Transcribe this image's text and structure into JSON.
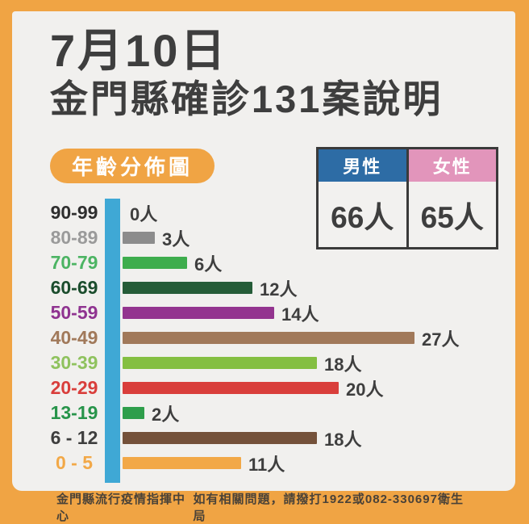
{
  "header": {
    "title_line1": "7月10日",
    "title_line2": "金門縣確診131案說明"
  },
  "age_chart": {
    "badge_label": "年齡分佈圖"
  },
  "gender_table": {
    "male": {
      "label": "男性",
      "value": "66人",
      "header_color": "#2D6CA5"
    },
    "female": {
      "label": "女性",
      "value": "65人",
      "header_color": "#E295BB"
    }
  },
  "chart_data": {
    "type": "bar",
    "orientation": "horizontal",
    "title": "年齡分佈圖",
    "categories": [
      "90-99",
      "80-89",
      "70-79",
      "60-69",
      "50-59",
      "40-49",
      "30-39",
      "20-29",
      "13-19",
      "6 - 12",
      "0 - 5"
    ],
    "values": [
      0,
      3,
      6,
      12,
      14,
      27,
      18,
      20,
      2,
      18,
      11
    ],
    "value_labels": [
      "0人",
      "3人",
      "6人",
      "12人",
      "14人",
      "27人",
      "18人",
      "20人",
      "2人",
      "18人",
      "11人"
    ],
    "bar_colors": [
      "#3E3E3E",
      "#8C8C8C",
      "#3EAD4D",
      "#255C38",
      "#93348F",
      "#A1795A",
      "#84BF41",
      "#D93E3B",
      "#2E9E4B",
      "#74513A",
      "#F2A847"
    ],
    "label_colors": [
      "#2E2E2E",
      "#9A9A9A",
      "#4CB463",
      "#1B4D2D",
      "#8F3390",
      "#A1795A",
      "#8FC25E",
      "#D93E3B",
      "#27944A",
      "#3E3E3E",
      "#F2A847"
    ],
    "axis_color": "#3FA8D5",
    "xlim": [
      0,
      27
    ],
    "grid": false,
    "legend_position": "none",
    "total_cases": 131
  },
  "footer": {
    "left": "金門縣流行疫情指揮中心",
    "right": "如有相關問題，請撥打1922或082-330697衛生局"
  },
  "colors": {
    "frame": "#F0A444",
    "card_bg": "#F1F0EE",
    "text_dark": "#3E3E3E",
    "table_border": "#3A3A3A",
    "footer_text": "#4A4238"
  }
}
